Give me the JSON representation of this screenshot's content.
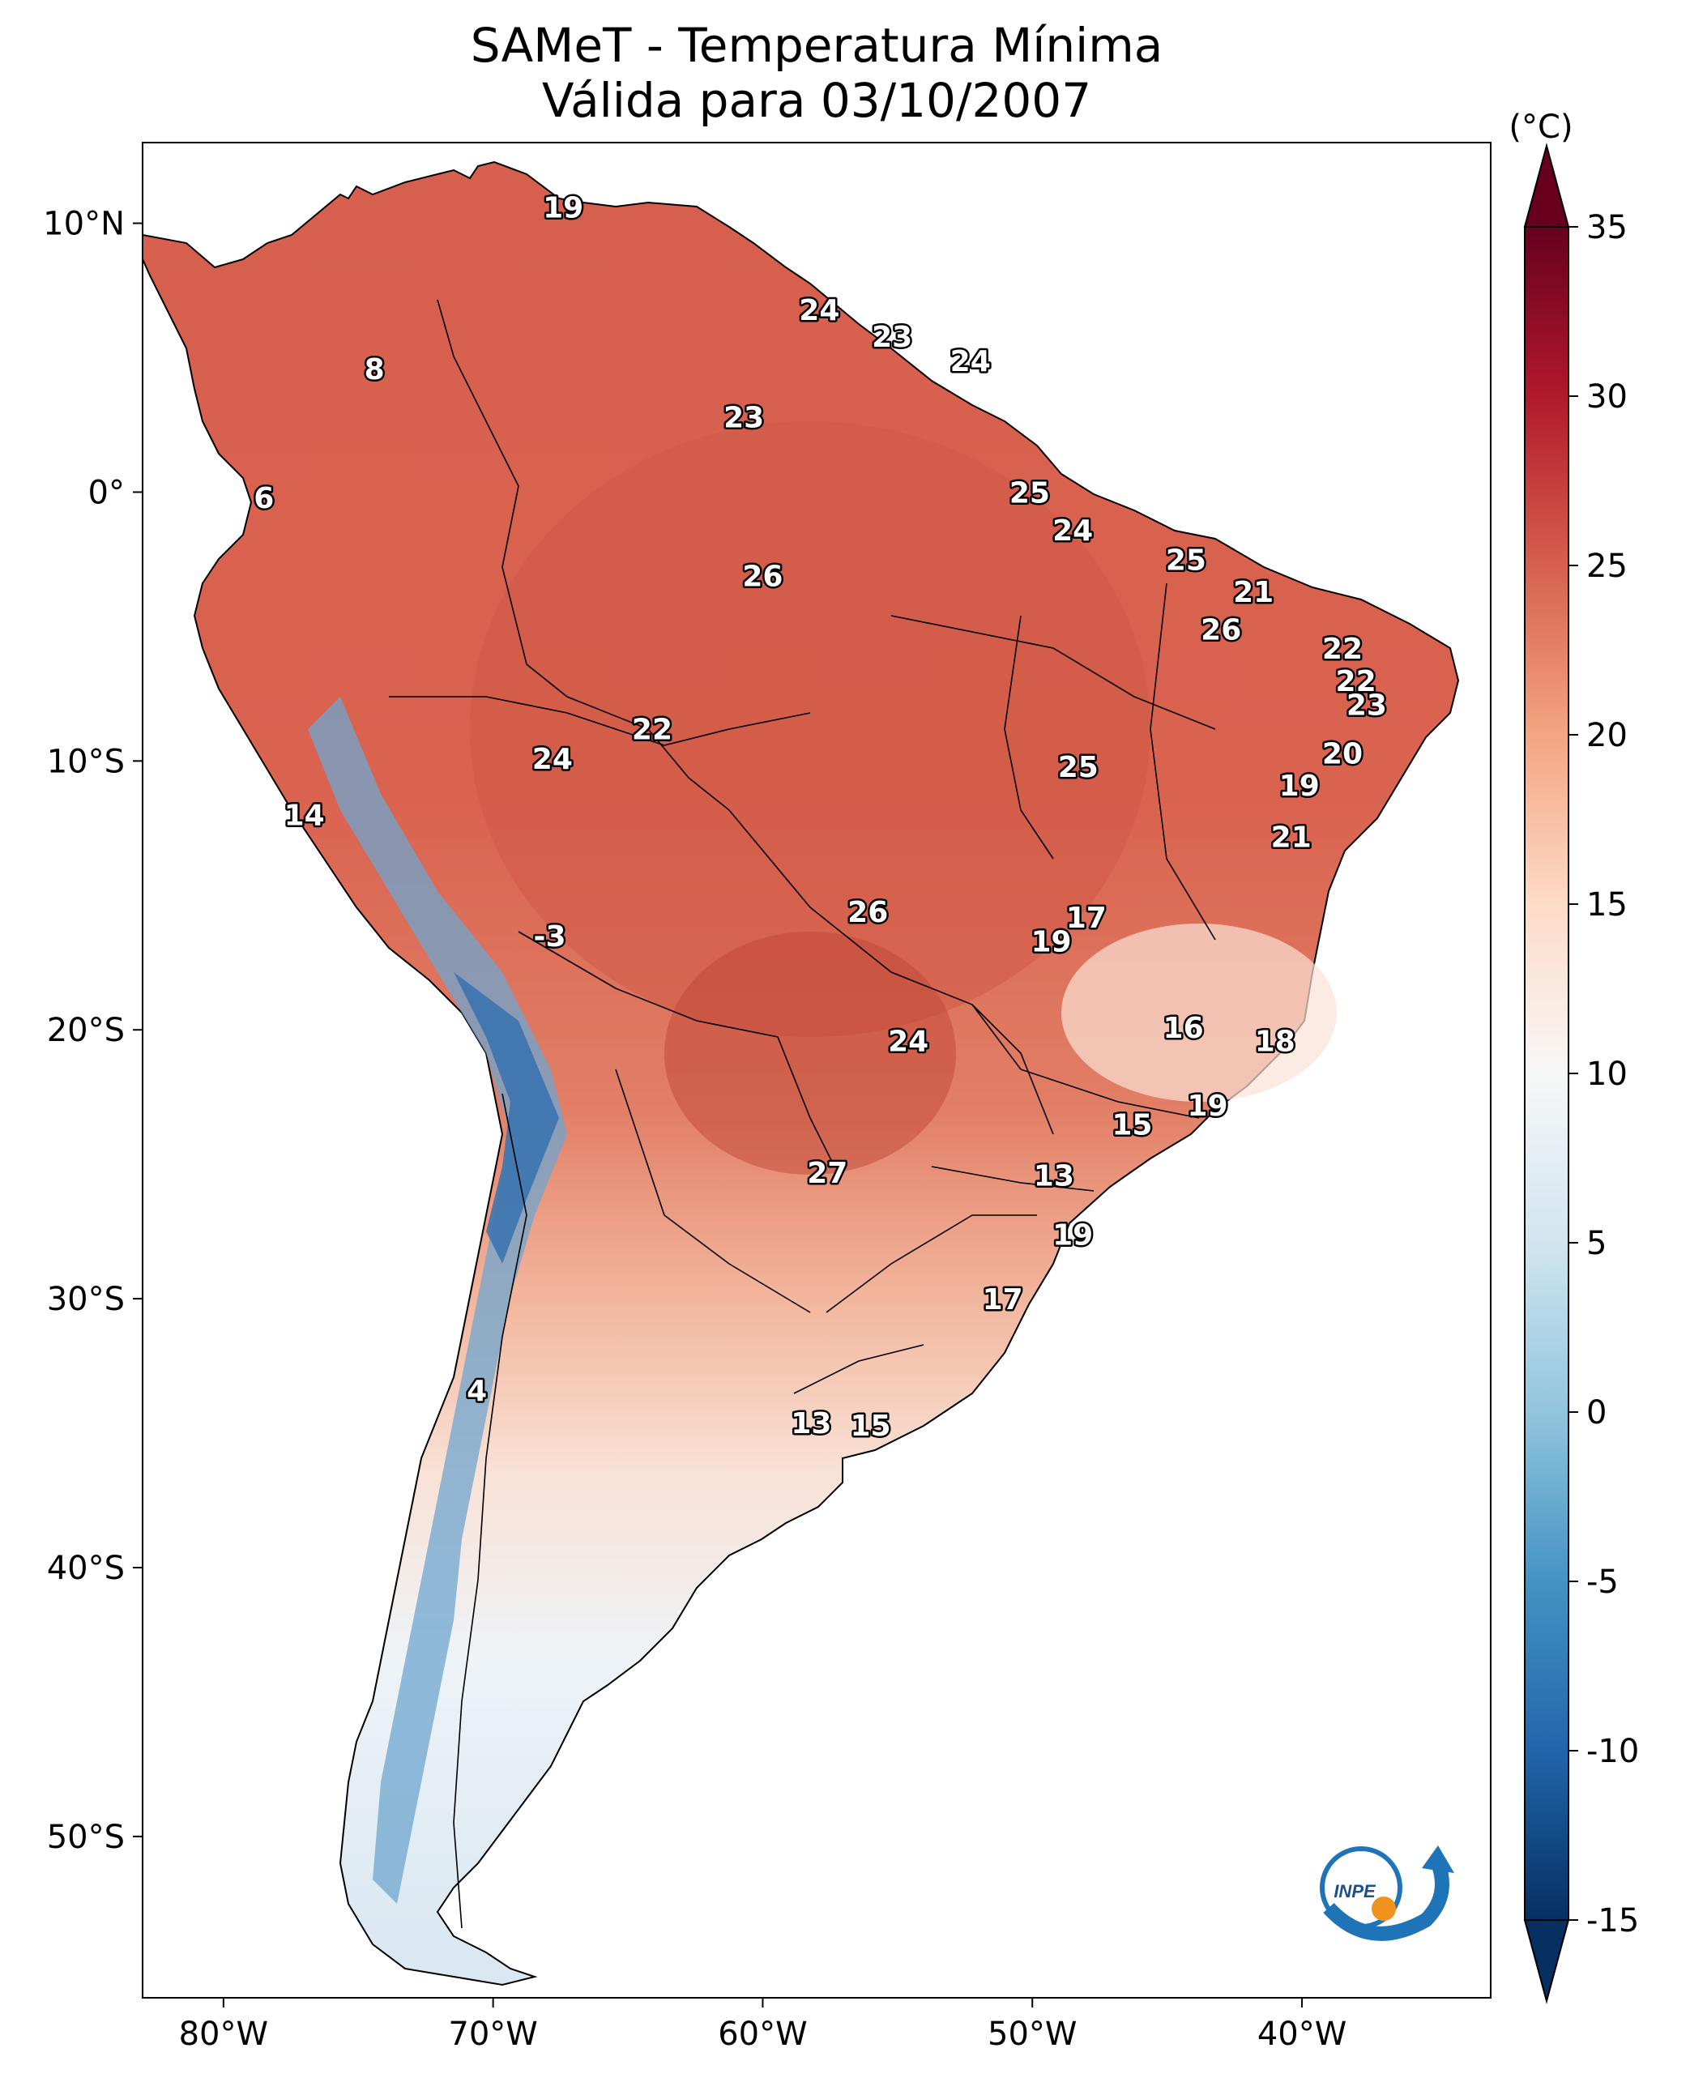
{
  "title": {
    "line1": "SAMeT - Temperatura Mínima",
    "line2": "Válida para 03/10/2007"
  },
  "map": {
    "lon_range": [
      -83,
      -33
    ],
    "lat_range": [
      -56,
      13
    ],
    "x_ticks": [
      {
        "lon": -80,
        "label": "80°W"
      },
      {
        "lon": -70,
        "label": "70°W"
      },
      {
        "lon": -60,
        "label": "60°W"
      },
      {
        "lon": -50,
        "label": "50°W"
      },
      {
        "lon": -40,
        "label": "40°W"
      }
    ],
    "y_ticks": [
      {
        "lat": 10,
        "label": "10°N"
      },
      {
        "lat": 0,
        "label": "0°"
      },
      {
        "lat": -10,
        "label": "10°S"
      },
      {
        "lat": -20,
        "label": "20°S"
      },
      {
        "lat": -30,
        "label": "30°S"
      },
      {
        "lat": -40,
        "label": "40°S"
      },
      {
        "lat": -50,
        "label": "50°S"
      }
    ],
    "station_values": [
      {
        "lon": -67.4,
        "lat": 10.6,
        "label": "19"
      },
      {
        "lon": -74.4,
        "lat": 4.6,
        "label": "8"
      },
      {
        "lon": -78.5,
        "lat": -0.2,
        "label": "6"
      },
      {
        "lon": -57.9,
        "lat": 6.8,
        "label": "24"
      },
      {
        "lon": -55.2,
        "lat": 5.8,
        "label": "23"
      },
      {
        "lon": -52.3,
        "lat": 4.9,
        "label": "24"
      },
      {
        "lon": -60.7,
        "lat": 2.8,
        "label": "23"
      },
      {
        "lon": -50.1,
        "lat": 0.0,
        "label": "25"
      },
      {
        "lon": -48.5,
        "lat": -1.4,
        "label": "24"
      },
      {
        "lon": -44.3,
        "lat": -2.5,
        "label": "25"
      },
      {
        "lon": -60.0,
        "lat": -3.1,
        "label": "26"
      },
      {
        "lon": -41.8,
        "lat": -3.7,
        "label": "21"
      },
      {
        "lon": -43.0,
        "lat": -5.1,
        "label": "26"
      },
      {
        "lon": -38.5,
        "lat": -5.8,
        "label": "22"
      },
      {
        "lon": -38.0,
        "lat": -7.0,
        "label": "22"
      },
      {
        "lon": -37.6,
        "lat": -7.9,
        "label": "23"
      },
      {
        "lon": -64.1,
        "lat": -8.8,
        "label": "22"
      },
      {
        "lon": -38.5,
        "lat": -9.7,
        "label": "20"
      },
      {
        "lon": -67.8,
        "lat": -9.9,
        "label": "24"
      },
      {
        "lon": -48.3,
        "lat": -10.2,
        "label": "25"
      },
      {
        "lon": -40.1,
        "lat": -10.9,
        "label": "19"
      },
      {
        "lon": -40.4,
        "lat": -12.8,
        "label": "21"
      },
      {
        "lon": -77.0,
        "lat": -12.0,
        "label": "14"
      },
      {
        "lon": -48.0,
        "lat": -15.8,
        "label": "17"
      },
      {
        "lon": -56.1,
        "lat": -15.6,
        "label": "26"
      },
      {
        "lon": -49.3,
        "lat": -16.7,
        "label": "19"
      },
      {
        "lon": -67.9,
        "lat": -16.5,
        "label": "-3"
      },
      {
        "lon": -44.4,
        "lat": -19.9,
        "label": "16"
      },
      {
        "lon": -54.6,
        "lat": -20.4,
        "label": "24"
      },
      {
        "lon": -41.0,
        "lat": -20.4,
        "label": "18"
      },
      {
        "lon": -43.5,
        "lat": -22.8,
        "label": "19"
      },
      {
        "lon": -46.3,
        "lat": -23.5,
        "label": "15"
      },
      {
        "lon": -57.6,
        "lat": -25.3,
        "label": "27"
      },
      {
        "lon": -49.2,
        "lat": -25.4,
        "label": "13"
      },
      {
        "lon": -48.5,
        "lat": -27.6,
        "label": "19"
      },
      {
        "lon": -51.1,
        "lat": -30.0,
        "label": "17"
      },
      {
        "lon": -70.6,
        "lat": -33.4,
        "label": "4"
      },
      {
        "lon": -58.2,
        "lat": -34.6,
        "label": "13"
      },
      {
        "lon": -56.0,
        "lat": -34.7,
        "label": "15"
      }
    ]
  },
  "colorbar": {
    "unit_label": "(°C)",
    "range": [
      -15,
      35
    ],
    "ticks": [
      "35",
      "30",
      "25",
      "20",
      "15",
      "10",
      "5",
      "0",
      "-5",
      "-10",
      "-15"
    ],
    "colors": [
      "#053061",
      "#2166ac",
      "#4393c3",
      "#92c5de",
      "#d1e5f0",
      "#f7f7f7",
      "#fddbc7",
      "#f4a582",
      "#d6604d",
      "#b2182b",
      "#67001f"
    ]
  },
  "logo": {
    "text": "INPE"
  }
}
